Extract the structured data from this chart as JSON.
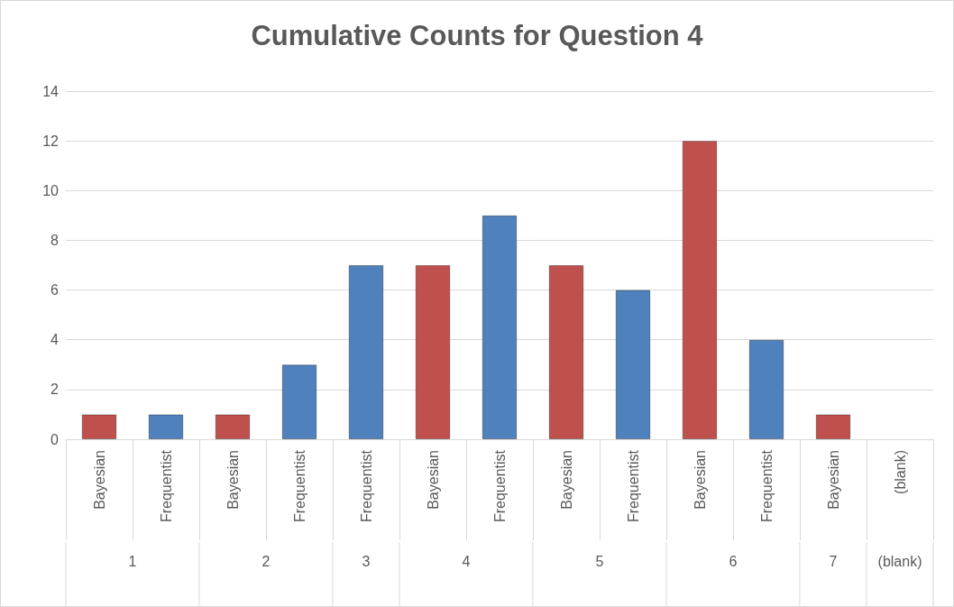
{
  "chart_data": {
    "type": "bar",
    "title": "Cumulative Counts for Question 4",
    "categories": [
      "Bayesian",
      "Frequentist",
      "Bayesian",
      "Frequentist",
      "Frequentist",
      "Bayesian",
      "Frequentist",
      "Bayesian",
      "Frequentist",
      "Bayesian",
      "Frequentist",
      "Bayesian",
      "(blank)"
    ],
    "values": [
      1,
      1,
      1,
      3,
      7,
      7,
      9,
      7,
      6,
      12,
      4,
      1,
      null
    ],
    "colors": [
      "#c0504d",
      "#4f81bd",
      "#c0504d",
      "#4f81bd",
      "#4f81bd",
      "#c0504d",
      "#4f81bd",
      "#c0504d",
      "#4f81bd",
      "#c0504d",
      "#4f81bd",
      "#c0504d",
      "#4f81bd"
    ],
    "annotations": [
      "1",
      "2",
      "3",
      "4",
      "5",
      "6",
      "7",
      "(blank)"
    ],
    "ylim": [
      0,
      14
    ],
    "yticks": [
      0,
      2,
      4,
      6,
      8,
      10,
      12,
      14
    ],
    "grid": "y"
  }
}
